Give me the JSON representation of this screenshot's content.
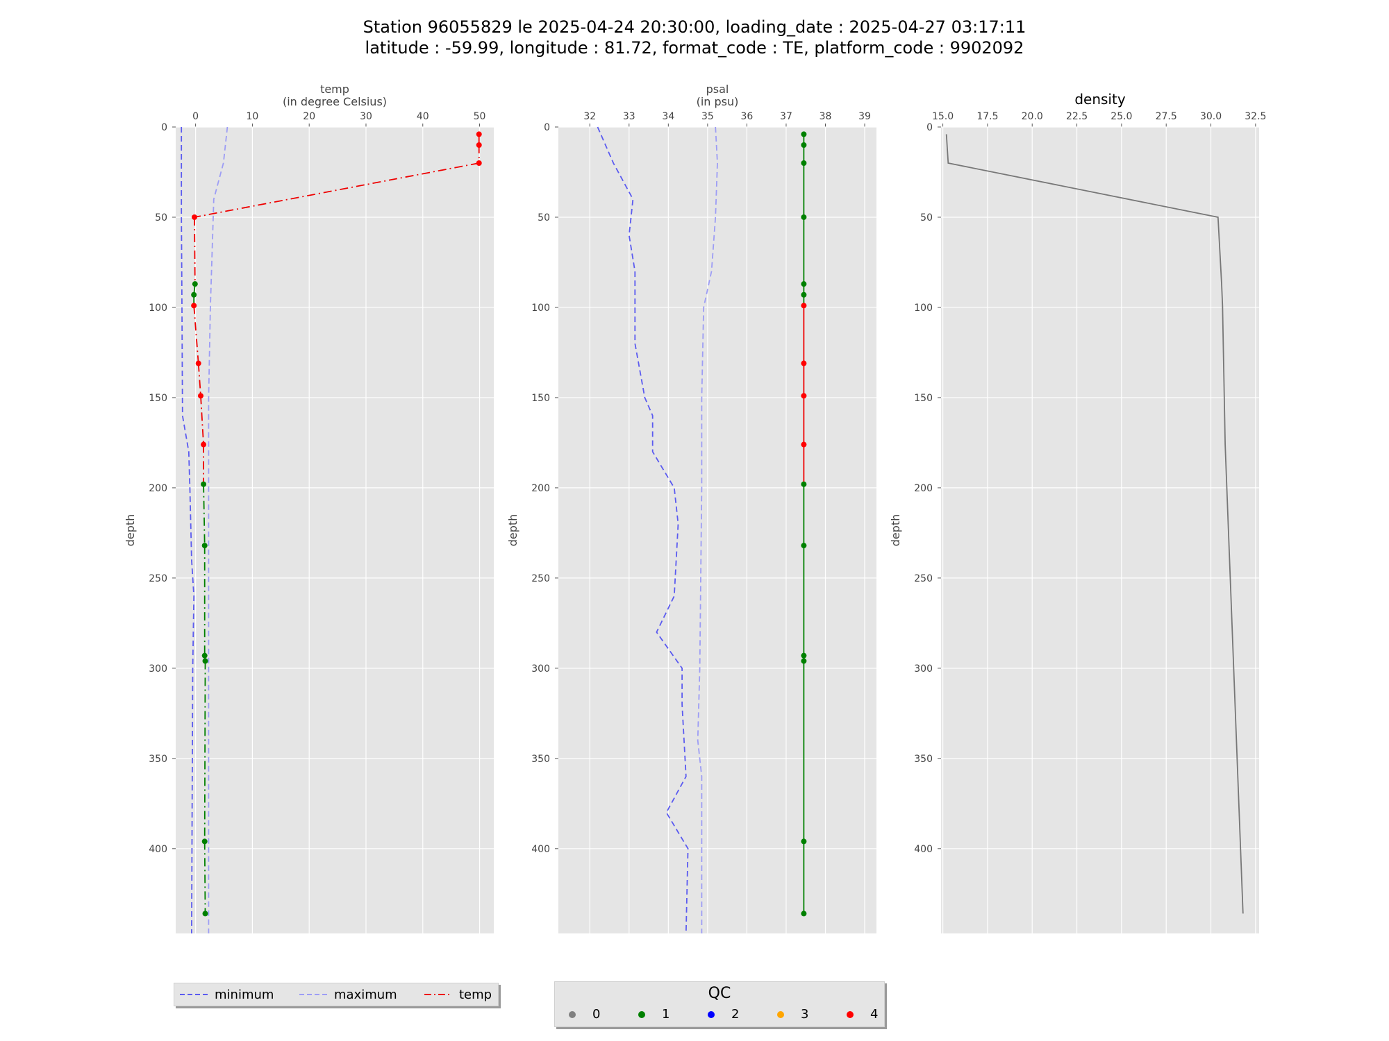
{
  "title": {
    "line1": "Station 96055829 le 2025-04-24 20:30:00, loading_date : 2025-04-27 03:17:11",
    "line2": "latitude : -59.99, longitude : 81.72, format_code : TE, platform_code : 9902092"
  },
  "colors": {
    "panel_bg": "#e5e5e5",
    "grid": "#ffffff",
    "minimum": "#5b5bf0",
    "maximum": "#9d9df5",
    "temp_line": "#ee0000",
    "psal_line": "#008000",
    "density_line": "#777777",
    "qc0": "#808080",
    "qc1": "#008000",
    "qc2": "#0000ff",
    "qc3": "#ffa500",
    "qc4": "#ff0000"
  },
  "chart_data": [
    {
      "type": "line",
      "title": "",
      "xlabel": "temp\n(in degree Celsius)",
      "ylabel": "depth",
      "xlim": [
        -3.5,
        52.5
      ],
      "ylim": [
        447,
        0
      ],
      "xticks": [
        0,
        10,
        20,
        30,
        40,
        50
      ],
      "yticks": [
        0,
        50,
        100,
        150,
        200,
        250,
        300,
        350,
        400
      ],
      "depth": [
        4,
        10,
        20,
        50,
        87,
        93,
        99,
        131,
        149,
        176,
        198,
        232,
        293,
        296,
        396,
        436
      ],
      "series": [
        {
          "name": "minimum",
          "style": "dashed",
          "points": [
            [
              -2.5,
              0
            ],
            [
              -2.5,
              50
            ],
            [
              -2.4,
              100
            ],
            [
              -2.3,
              160
            ],
            [
              -1.2,
              180
            ],
            [
              -1.0,
              200
            ],
            [
              -0.7,
              240
            ],
            [
              -0.3,
              260
            ],
            [
              -0.5,
              300
            ],
            [
              -0.7,
              447
            ]
          ]
        },
        {
          "name": "maximum",
          "style": "dashed",
          "points": [
            [
              5.6,
              0
            ],
            [
              4.9,
              20
            ],
            [
              3.2,
              40
            ],
            [
              3.0,
              60
            ],
            [
              2.6,
              100
            ],
            [
              2.3,
              150
            ],
            [
              2.3,
              200
            ],
            [
              2.3,
              300
            ],
            [
              2.3,
              447
            ]
          ]
        },
        {
          "name": "temp",
          "style": "dashdot",
          "values": [
            49.9,
            49.9,
            49.9,
            -0.2,
            -0.1,
            -0.3,
            -0.3,
            0.5,
            0.9,
            1.4,
            1.4,
            1.6,
            1.6,
            1.7,
            1.6,
            1.7
          ],
          "qc": [
            4,
            4,
            4,
            4,
            1,
            1,
            4,
            4,
            4,
            4,
            1,
            1,
            1,
            1,
            1,
            1
          ]
        }
      ]
    },
    {
      "type": "line",
      "title": "",
      "xlabel": "psal\n(in psu)",
      "ylabel": "depth",
      "xlim": [
        31.2,
        39.3
      ],
      "ylim": [
        447,
        0
      ],
      "xticks": [
        32,
        33,
        34,
        35,
        36,
        37,
        38,
        39
      ],
      "yticks": [
        0,
        50,
        100,
        150,
        200,
        250,
        300,
        350,
        400
      ],
      "depth": [
        4,
        10,
        20,
        50,
        87,
        93,
        99,
        131,
        149,
        176,
        198,
        232,
        293,
        296,
        396,
        436
      ],
      "series": [
        {
          "name": "minimum",
          "style": "dashed",
          "points": [
            [
              32.2,
              0
            ],
            [
              32.6,
              20
            ],
            [
              33.1,
              40
            ],
            [
              33.0,
              60
            ],
            [
              33.15,
              80
            ],
            [
              33.15,
              120
            ],
            [
              33.4,
              150
            ],
            [
              33.6,
              160
            ],
            [
              33.6,
              180
            ],
            [
              34.15,
              200
            ],
            [
              34.25,
              220
            ],
            [
              34.15,
              260
            ],
            [
              33.7,
              280
            ],
            [
              34.35,
              300
            ],
            [
              34.35,
              320
            ],
            [
              34.45,
              360
            ],
            [
              33.95,
              380
            ],
            [
              34.5,
              400
            ],
            [
              34.45,
              447
            ]
          ]
        },
        {
          "name": "maximum",
          "style": "dashed",
          "points": [
            [
              35.2,
              0
            ],
            [
              35.25,
              20
            ],
            [
              35.2,
              50
            ],
            [
              35.1,
              80
            ],
            [
              34.9,
              100
            ],
            [
              34.85,
              150
            ],
            [
              34.85,
              200
            ],
            [
              34.8,
              300
            ],
            [
              34.75,
              340
            ],
            [
              34.85,
              360
            ],
            [
              34.85,
              447
            ]
          ]
        },
        {
          "name": "psal",
          "style": "solid",
          "values": [
            37.45,
            37.45,
            37.45,
            37.45,
            37.45,
            37.45,
            37.45,
            37.45,
            37.45,
            37.45,
            37.45,
            37.45,
            37.45,
            37.45,
            37.45,
            37.45
          ],
          "qc": [
            1,
            1,
            1,
            1,
            1,
            1,
            4,
            4,
            4,
            4,
            1,
            1,
            1,
            1,
            1,
            1
          ]
        }
      ]
    },
    {
      "type": "line",
      "title": "density",
      "xlabel": "",
      "ylabel": "depth",
      "xlim": [
        14.9,
        32.7
      ],
      "ylim": [
        447,
        0
      ],
      "xticks": [
        15.0,
        17.5,
        20.0,
        22.5,
        25.0,
        27.5,
        30.0,
        32.5
      ],
      "xtick_labels": [
        "15.0",
        "17.5",
        "20.0",
        "22.5",
        "25.0",
        "27.5",
        "30.0",
        "32.5"
      ],
      "yticks": [
        0,
        50,
        100,
        150,
        200,
        250,
        300,
        350,
        400
      ],
      "series": [
        {
          "name": "density",
          "style": "solid",
          "points": [
            [
              15.2,
              4
            ],
            [
              15.3,
              20
            ],
            [
              30.4,
              50
            ],
            [
              30.6,
              87
            ],
            [
              30.65,
              99
            ],
            [
              30.8,
              176
            ],
            [
              31.8,
              436
            ]
          ]
        }
      ]
    }
  ],
  "legend": {
    "minimum": "minimum",
    "maximum": "maximum",
    "temp": "temp"
  },
  "qc_legend": {
    "title": "QC",
    "items": [
      {
        "label": "0",
        "color": "#808080"
      },
      {
        "label": "1",
        "color": "#008000"
      },
      {
        "label": "2",
        "color": "#0000ff"
      },
      {
        "label": "3",
        "color": "#ffa500"
      },
      {
        "label": "4",
        "color": "#ff0000"
      }
    ]
  }
}
